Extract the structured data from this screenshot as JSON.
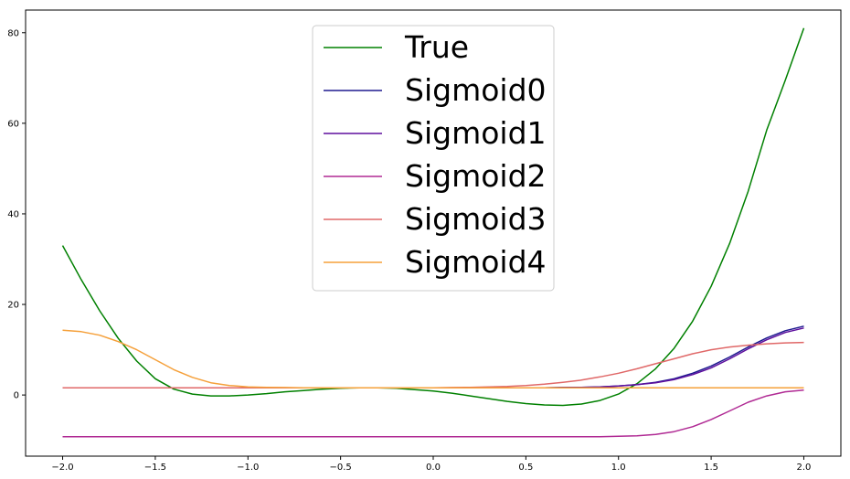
{
  "chart_data": {
    "type": "line",
    "title": "",
    "xlabel": "",
    "ylabel": "",
    "xlim": [
      -2.2,
      2.2
    ],
    "ylim": [
      -13.5,
      85
    ],
    "xticks": [
      -2.0,
      -1.5,
      -1.0,
      -0.5,
      0.0,
      0.5,
      1.0,
      1.5,
      2.0
    ],
    "xtick_labels": [
      "−2.0",
      "−1.5",
      "−1.0",
      "−0.5",
      "0.0",
      "0.5",
      "1.0",
      "1.5",
      "2.0"
    ],
    "yticks": [
      0,
      20,
      40,
      60,
      80
    ],
    "ytick_labels": [
      "0",
      "20",
      "40",
      "60",
      "80"
    ],
    "grid": false,
    "legend_position": "top-center",
    "x": [
      -2.0,
      -1.9,
      -1.8,
      -1.7,
      -1.6,
      -1.5,
      -1.4,
      -1.3,
      -1.2,
      -1.1,
      -1.0,
      -0.9,
      -0.8,
      -0.7,
      -0.6,
      -0.5,
      -0.4,
      -0.3,
      -0.2,
      -0.1,
      0.0,
      0.1,
      0.2,
      0.3,
      0.4,
      0.5,
      0.6,
      0.7,
      0.8,
      0.9,
      1.0,
      1.1,
      1.2,
      1.3,
      1.4,
      1.5,
      1.6,
      1.7,
      1.8,
      1.9,
      2.0
    ],
    "series": [
      {
        "name": "True",
        "color": "#008000",
        "values": [
          33.0,
          25.5,
          18.6,
          12.5,
          7.5,
          3.6,
          1.3,
          0.2,
          -0.2,
          -0.2,
          0.0,
          0.3,
          0.7,
          1.0,
          1.3,
          1.5,
          1.6,
          1.6,
          1.5,
          1.2,
          0.9,
          0.4,
          -0.2,
          -0.8,
          -1.4,
          -1.9,
          -2.2,
          -2.3,
          -2.0,
          -1.2,
          0.2,
          2.5,
          5.8,
          10.3,
          16.3,
          24.0,
          33.5,
          45.0,
          58.5,
          69.5,
          81.0
        ]
      },
      {
        "name": "Sigmoid0",
        "color": "#1f1a8f",
        "values": [
          1.6,
          1.6,
          1.6,
          1.6,
          1.6,
          1.6,
          1.6,
          1.6,
          1.6,
          1.6,
          1.6,
          1.6,
          1.6,
          1.6,
          1.6,
          1.6,
          1.6,
          1.6,
          1.6,
          1.6,
          1.6,
          1.6,
          1.6,
          1.6,
          1.6,
          1.6,
          1.6,
          1.65,
          1.7,
          1.8,
          2.0,
          2.3,
          2.8,
          3.6,
          4.8,
          6.4,
          8.4,
          10.6,
          12.6,
          14.2,
          15.2
        ]
      },
      {
        "name": "Sigmoid1",
        "color": "#5e0f9e",
        "values": [
          1.6,
          1.6,
          1.6,
          1.6,
          1.6,
          1.6,
          1.6,
          1.6,
          1.6,
          1.6,
          1.6,
          1.6,
          1.6,
          1.6,
          1.6,
          1.6,
          1.6,
          1.6,
          1.6,
          1.6,
          1.6,
          1.6,
          1.6,
          1.6,
          1.6,
          1.6,
          1.6,
          1.65,
          1.7,
          1.8,
          2.0,
          2.3,
          2.7,
          3.4,
          4.5,
          6.0,
          8.0,
          10.2,
          12.2,
          13.8,
          14.8
        ]
      },
      {
        "name": "Sigmoid2",
        "color": "#b02a94",
        "values": [
          -9.2,
          -9.2,
          -9.2,
          -9.2,
          -9.2,
          -9.2,
          -9.2,
          -9.2,
          -9.2,
          -9.2,
          -9.2,
          -9.2,
          -9.2,
          -9.2,
          -9.2,
          -9.2,
          -9.2,
          -9.2,
          -9.2,
          -9.2,
          -9.2,
          -9.2,
          -9.2,
          -9.2,
          -9.2,
          -9.2,
          -9.2,
          -9.2,
          -9.2,
          -9.2,
          -9.1,
          -9.0,
          -8.7,
          -8.1,
          -7.0,
          -5.4,
          -3.5,
          -1.6,
          -0.2,
          0.7,
          1.1
        ]
      },
      {
        "name": "Sigmoid3",
        "color": "#e06868",
        "values": [
          1.6,
          1.6,
          1.6,
          1.6,
          1.6,
          1.6,
          1.6,
          1.6,
          1.6,
          1.6,
          1.6,
          1.6,
          1.6,
          1.6,
          1.6,
          1.6,
          1.6,
          1.6,
          1.6,
          1.6,
          1.6,
          1.65,
          1.7,
          1.8,
          1.9,
          2.1,
          2.4,
          2.8,
          3.3,
          4.0,
          4.8,
          5.8,
          6.9,
          8.0,
          9.1,
          10.0,
          10.6,
          11.0,
          11.3,
          11.5,
          11.6
        ]
      },
      {
        "name": "Sigmoid4",
        "color": "#f5a03a",
        "values": [
          14.3,
          14.0,
          13.2,
          11.8,
          10.0,
          7.8,
          5.6,
          3.9,
          2.7,
          2.1,
          1.8,
          1.7,
          1.65,
          1.6,
          1.6,
          1.6,
          1.6,
          1.6,
          1.6,
          1.6,
          1.6,
          1.6,
          1.6,
          1.6,
          1.6,
          1.6,
          1.6,
          1.6,
          1.6,
          1.6,
          1.6,
          1.6,
          1.6,
          1.6,
          1.6,
          1.6,
          1.6,
          1.6,
          1.6,
          1.6,
          1.6
        ]
      }
    ]
  }
}
